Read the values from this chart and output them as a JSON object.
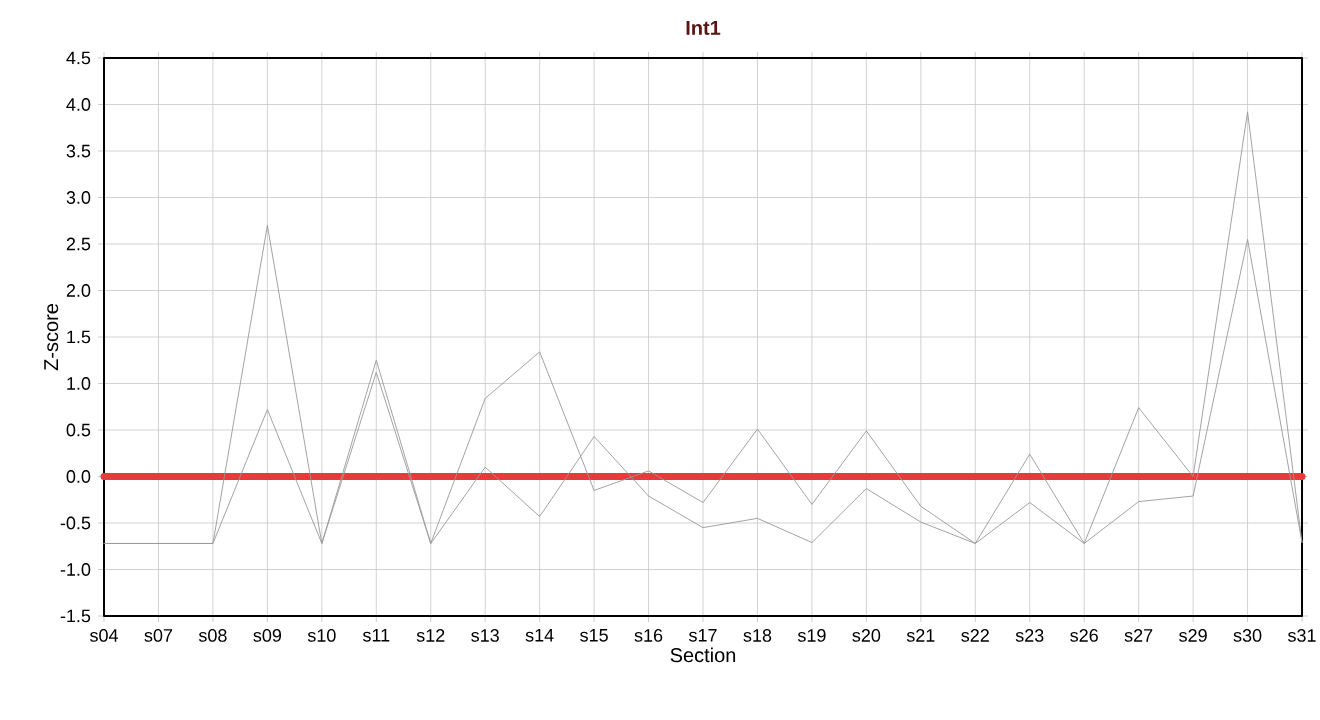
{
  "chart_data": {
    "type": "line",
    "title": "Int1",
    "xlabel": "Section",
    "ylabel": "Z-score",
    "categories": [
      "s04",
      "s07",
      "s08",
      "s09",
      "s10",
      "s11",
      "s12",
      "s13",
      "s14",
      "s15",
      "s16",
      "s17",
      "s18",
      "s19",
      "s20",
      "s21",
      "s22",
      "s23",
      "s26",
      "s27",
      "s29",
      "s30",
      "s31"
    ],
    "series": [
      {
        "color": "#999999",
        "values": [
          -0.72,
          -0.72,
          -0.72,
          2.7,
          -0.72,
          1.25,
          -0.72,
          0.84,
          1.34,
          -0.15,
          0.06,
          -0.28,
          0.51,
          -0.3,
          0.49,
          -0.32,
          -0.72,
          0.24,
          -0.72,
          0.74,
          0,
          3.92,
          -0.71
        ]
      },
      {
        "color": "#999999",
        "values": [
          -0.72,
          -0.72,
          -0.72,
          0.72,
          -0.72,
          1.12,
          -0.72,
          0.1,
          -0.43,
          0.43,
          -0.21,
          -0.55,
          -0.45,
          -0.71,
          -0.13,
          -0.49,
          -0.72,
          -0.28,
          -0.72,
          -0.27,
          -0.21,
          2.55,
          -0.71
        ]
      }
    ],
    "ylim": [
      -1.5,
      4.5
    ],
    "yticks": [
      {
        "value": -1.5,
        "label": "-1.5"
      },
      {
        "value": -1,
        "label": "-1.0"
      },
      {
        "value": -0.5,
        "label": "-0.5"
      },
      {
        "value": 0,
        "label": "0.0"
      },
      {
        "value": 0.5,
        "label": "0.5"
      },
      {
        "value": 1,
        "label": "1.0"
      },
      {
        "value": 1.5,
        "label": "1.5"
      },
      {
        "value": 2,
        "label": "2.0"
      },
      {
        "value": 2.5,
        "label": "2.5"
      },
      {
        "value": 3,
        "label": "3.0"
      },
      {
        "value": 3.5,
        "label": "3.5"
      },
      {
        "value": 4,
        "label": "4.0"
      },
      {
        "value": 4.5,
        "label": "4.5"
      }
    ],
    "ref_lines": [
      {
        "axis": "y",
        "value": 0,
        "color": "#e83a3a"
      }
    ],
    "grid": true,
    "marker": "none",
    "line_style": "solid"
  }
}
